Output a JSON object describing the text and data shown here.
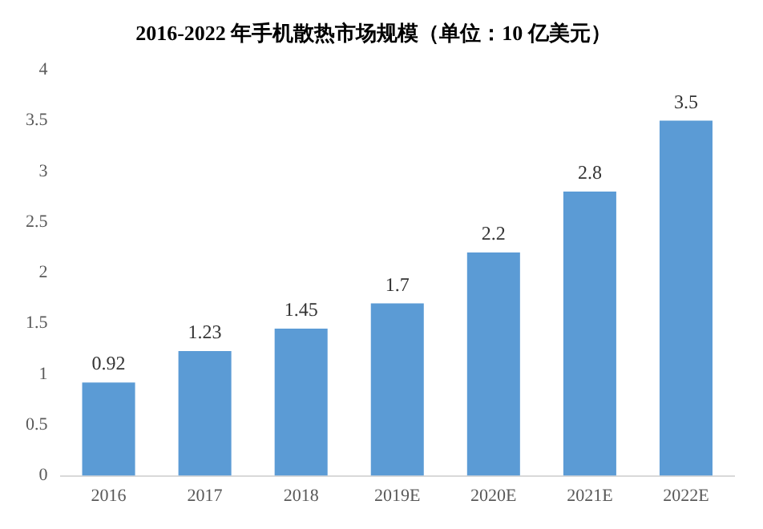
{
  "chart_data": {
    "type": "bar",
    "title": "2016-2022 年手机散热市场规模（单位：10 亿美元）",
    "categories": [
      "2016",
      "2017",
      "2018",
      "2019E",
      "2020E",
      "2021E",
      "2022E"
    ],
    "values": [
      0.92,
      1.23,
      1.45,
      1.7,
      2.2,
      2.8,
      3.5
    ],
    "color": "#5b9bd5",
    "ylim": [
      0,
      4
    ],
    "yticks": [
      0,
      0.5,
      1,
      1.5,
      2,
      2.5,
      3,
      3.5,
      4
    ],
    "grid": false,
    "data_labels": true,
    "legend": false
  }
}
